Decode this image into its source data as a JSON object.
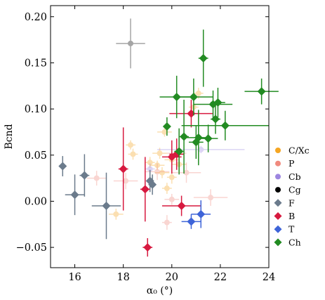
{
  "chart_data": {
    "type": "scatter",
    "xlabel": "α₀ (°)",
    "ylabel": "Bcnd",
    "xlim": [
      15.0,
      24.0
    ],
    "ylim": [
      -0.072,
      0.212
    ],
    "xticks": [
      16,
      18,
      20,
      22,
      24
    ],
    "xtick_labels": [
      "16",
      "18",
      "20",
      "22",
      "24"
    ],
    "yticks": [
      -0.05,
      0.0,
      0.05,
      0.1,
      0.15,
      0.2
    ],
    "ytick_labels": [
      "−0.05",
      "0.00",
      "0.05",
      "0.10",
      "0.15",
      "0.20"
    ],
    "legend_position": "right",
    "series": [
      {
        "name": "C/Xc",
        "color": "#f5a623",
        "marker": "circle",
        "faded": true,
        "points": [
          {
            "x": 17.7,
            "y": -0.014,
            "xerr": 0.3,
            "yerr": 0.006
          },
          {
            "x": 18.3,
            "y": 0.061,
            "xerr": 0.2,
            "yerr": 0.005
          },
          {
            "x": 18.4,
            "y": 0.051,
            "xerr": 0.2,
            "yerr": 0.006
          },
          {
            "x": 19.1,
            "y": 0.042,
            "xerr": 0.2,
            "yerr": 0.006
          },
          {
            "x": 19.4,
            "y": 0.039,
            "xerr": 0.3,
            "yerr": 0.005
          },
          {
            "x": 19.5,
            "y": 0.052,
            "xerr": 0.3,
            "yerr": 0.006
          },
          {
            "x": 19.6,
            "y": 0.031,
            "xerr": 0.3,
            "yerr": 0.006
          },
          {
            "x": 19.7,
            "y": 0.075,
            "xerr": 0.3,
            "yerr": 0.005
          },
          {
            "x": 19.8,
            "y": 0.014,
            "xerr": 0.2,
            "yerr": 0.006
          },
          {
            "x": 20.0,
            "y": 0.045,
            "xerr": 0.3,
            "yerr": 0.007
          },
          {
            "x": 20.0,
            "y": 0.026,
            "xerr": 0.2,
            "yerr": 0.007
          },
          {
            "x": 20.3,
            "y": 0.04,
            "xerr": 0.3,
            "yerr": 0.008
          },
          {
            "x": 21.1,
            "y": 0.117,
            "xerr": 0.2,
            "yerr": 0.006
          },
          {
            "x": 20.9,
            "y": 0.102,
            "xerr": 0.2,
            "yerr": 0.006
          }
        ]
      },
      {
        "name": "P",
        "color": "#f08a7e",
        "marker": "circle",
        "faded": true,
        "points": [
          {
            "x": 16.9,
            "y": 0.025,
            "xerr": 0.4,
            "yerr": 0.008
          },
          {
            "x": 18.1,
            "y": 0.022,
            "xerr": 0.5,
            "yerr": 0.009
          },
          {
            "x": 19.4,
            "y": 0.032,
            "xerr": 0.5,
            "yerr": 0.009
          },
          {
            "x": 19.8,
            "y": -0.023,
            "xerr": 0.2,
            "yerr": 0.008
          },
          {
            "x": 20.0,
            "y": 0.002,
            "xerr": 0.3,
            "yerr": 0.006
          },
          {
            "x": 20.2,
            "y": 0.052,
            "xerr": 0.4,
            "yerr": 0.008
          },
          {
            "x": 20.6,
            "y": 0.031,
            "xerr": 0.6,
            "yerr": 0.011
          },
          {
            "x": 21.6,
            "y": 0.004,
            "xerr": 0.7,
            "yerr": 0.009
          }
        ]
      },
      {
        "name": "Cb",
        "color": "#9d86e0",
        "marker": "circle",
        "faded": true,
        "points": [
          {
            "x": 19.1,
            "y": 0.035,
            "xerr": 0.2,
            "yerr": 0.006
          },
          {
            "x": 21.2,
            "y": 0.056,
            "xerr": 1.8,
            "yerr": 0.004
          }
        ]
      },
      {
        "name": "Cg",
        "color": "#000000",
        "marker": "circle",
        "faded": true,
        "points": [
          {
            "x": 18.3,
            "y": 0.171,
            "xerr": 0.6,
            "yerr": 0.027
          }
        ]
      },
      {
        "name": "F",
        "color": "#6b7b8c",
        "marker": "diamond",
        "faded": false,
        "points": [
          {
            "x": 15.5,
            "y": 0.038,
            "xerr": 0.1,
            "yerr": 0.011
          },
          {
            "x": 16.0,
            "y": 0.007,
            "xerr": 0.4,
            "yerr": 0.022
          },
          {
            "x": 16.4,
            "y": 0.028,
            "xerr": 0.2,
            "yerr": 0.023
          },
          {
            "x": 17.3,
            "y": -0.005,
            "xerr": 0.6,
            "yerr": 0.036
          },
          {
            "x": 19.1,
            "y": 0.022,
            "xerr": 0.1,
            "yerr": 0.012
          },
          {
            "x": 19.2,
            "y": 0.018,
            "xerr": 0.1,
            "yerr": 0.011
          }
        ]
      },
      {
        "name": "B",
        "color": "#d7193f",
        "marker": "diamond",
        "faded": false,
        "points": [
          {
            "x": 18.0,
            "y": 0.035,
            "xerr": 0.2,
            "yerr": 0.045
          },
          {
            "x": 18.9,
            "y": 0.013,
            "xerr": 0.2,
            "yerr": 0.035
          },
          {
            "x": 19.0,
            "y": -0.05,
            "xerr": 0.2,
            "yerr": 0.01
          },
          {
            "x": 20.0,
            "y": 0.048,
            "xerr": 0.4,
            "yerr": 0.018
          },
          {
            "x": 20.2,
            "y": 0.051,
            "xerr": 0.3,
            "yerr": 0.017
          },
          {
            "x": 20.4,
            "y": -0.005,
            "xerr": 0.8,
            "yerr": 0.011
          },
          {
            "x": 20.8,
            "y": 0.095,
            "xerr": 0.9,
            "yerr": 0.015
          }
        ]
      },
      {
        "name": "T",
        "color": "#3e64d8",
        "marker": "diamond",
        "faded": false,
        "points": [
          {
            "x": 20.8,
            "y": -0.022,
            "xerr": 0.4,
            "yerr": 0.008
          },
          {
            "x": 21.2,
            "y": -0.014,
            "xerr": 0.4,
            "yerr": 0.015
          }
        ]
      },
      {
        "name": "Ch",
        "color": "#228b22",
        "marker": "diamond",
        "faded": false,
        "points": [
          {
            "x": 19.8,
            "y": 0.081,
            "xerr": 0.1,
            "yerr": 0.01
          },
          {
            "x": 20.2,
            "y": 0.113,
            "xerr": 0.7,
            "yerr": 0.023
          },
          {
            "x": 20.3,
            "y": 0.054,
            "xerr": 0.2,
            "yerr": 0.025
          },
          {
            "x": 20.5,
            "y": 0.07,
            "xerr": 0.2,
            "yerr": 0.04
          },
          {
            "x": 20.9,
            "y": 0.113,
            "xerr": 0.8,
            "yerr": 0.02
          },
          {
            "x": 21.0,
            "y": 0.064,
            "xerr": 0.3,
            "yerr": 0.018
          },
          {
            "x": 21.1,
            "y": 0.069,
            "xerr": 0.5,
            "yerr": 0.03
          },
          {
            "x": 21.3,
            "y": 0.155,
            "xerr": 0.2,
            "yerr": 0.031
          },
          {
            "x": 21.5,
            "y": 0.068,
            "xerr": 0.4,
            "yerr": 0.015
          },
          {
            "x": 21.7,
            "y": 0.105,
            "xerr": 0.8,
            "yerr": 0.015
          },
          {
            "x": 21.8,
            "y": 0.089,
            "xerr": 0.2,
            "yerr": 0.016
          },
          {
            "x": 21.9,
            "y": 0.107,
            "xerr": 0.3,
            "yerr": 0.016
          },
          {
            "x": 22.2,
            "y": 0.082,
            "xerr": 1.8,
            "yerr": 0.016
          },
          {
            "x": 23.7,
            "y": 0.119,
            "xerr": 0.7,
            "yerr": 0.014
          }
        ]
      }
    ]
  }
}
